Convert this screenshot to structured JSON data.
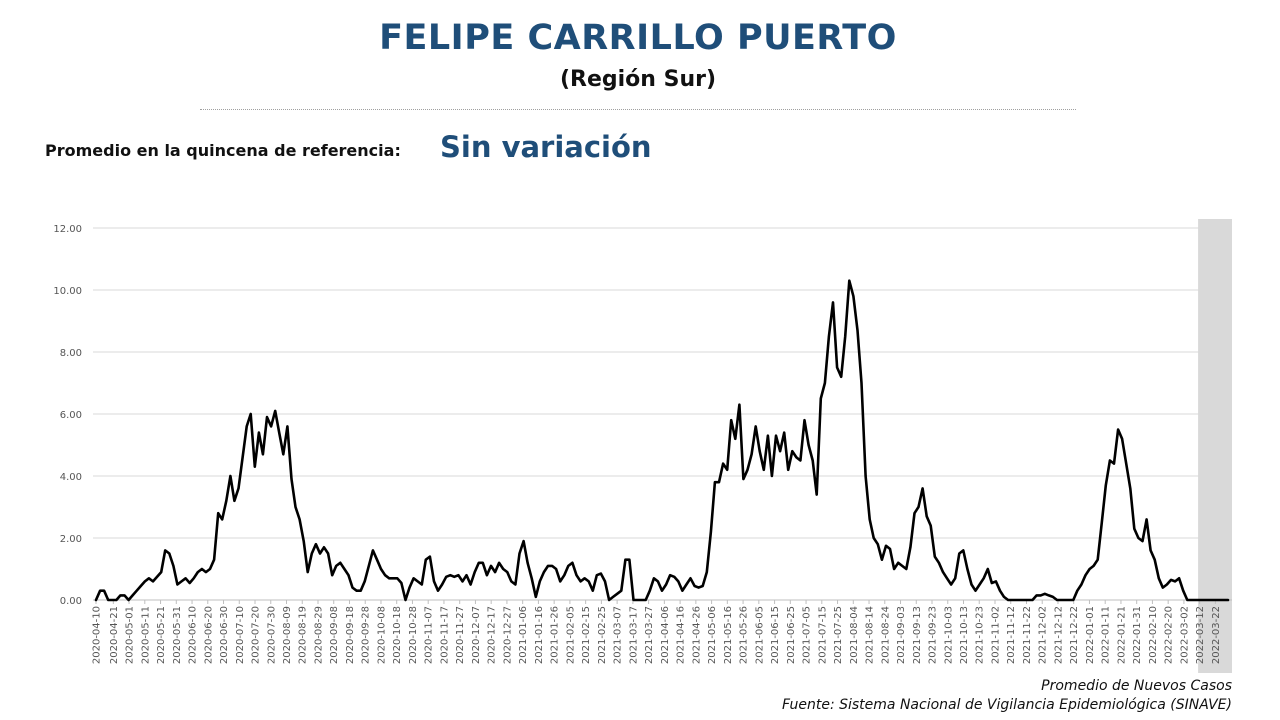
{
  "header": {
    "title": "FELIPE CARRILLO PUERTO",
    "subtitle": "(Región Sur)"
  },
  "reference": {
    "label": "Promedio en la quincena de referencia:",
    "value": "Sin variación"
  },
  "footer": {
    "line1": "Promedio de Nuevos Casos",
    "line2": "Fuente: Sistema Nacional de Vigilancia Epidemiológica (SINAVE)"
  },
  "colors": {
    "title": "#1f4e79",
    "line": "#000000",
    "grid": "#d9d9d9",
    "shade": "#d9d9d9"
  },
  "chart_data": {
    "type": "line",
    "title": "",
    "xlabel": "",
    "ylabel": "",
    "ylim": [
      0,
      12
    ],
    "yticks": [
      "0.00",
      "2.00",
      "4.00",
      "6.00",
      "8.00",
      "10.00",
      "12.00"
    ],
    "xticks": [
      "2020-04-10",
      "2020-04-21",
      "2020-05-01",
      "2020-05-11",
      "2020-05-21",
      "2020-05-31",
      "2020-06-10",
      "2020-06-20",
      "2020-06-30",
      "2020-07-10",
      "2020-07-20",
      "2020-07-30",
      "2020-08-09",
      "2020-08-19",
      "2020-08-29",
      "2020-09-08",
      "2020-09-18",
      "2020-09-28",
      "2020-10-08",
      "2020-10-18",
      "2020-10-28",
      "2020-11-07",
      "2020-11-17",
      "2020-11-27",
      "2020-12-07",
      "2020-12-17",
      "2020-12-27",
      "2021-01-06",
      "2021-01-16",
      "2021-01-26",
      "2021-02-05",
      "2021-02-15",
      "2021-02-25",
      "2021-03-07",
      "2021-03-17",
      "2021-03-27",
      "2021-04-06",
      "2021-04-16",
      "2021-04-26",
      "2021-05-06",
      "2021-05-16",
      "2021-05-26",
      "2021-06-05",
      "2021-06-15",
      "2021-06-25",
      "2021-07-05",
      "2021-07-15",
      "2021-07-25",
      "2021-08-04",
      "2021-08-14",
      "2021-08-24",
      "2021-09-03",
      "2021-09-13",
      "2021-09-23",
      "2021-10-03",
      "2021-10-13",
      "2021-10-23",
      "2021-11-02",
      "2021-11-12",
      "2021-11-22",
      "2021-12-02",
      "2021-12-12",
      "2021-12-22",
      "2022-01-01",
      "2022-01-11",
      "2022-01-21",
      "2022-01-31",
      "2022-02-10",
      "2022-02-20",
      "2022-03-02",
      "2022-03-12",
      "2022-03-22"
    ],
    "shaded_region": [
      "2022-03-11",
      "2022-03-30"
    ],
    "series": [
      {
        "values": [
          0.0,
          0.3,
          0.3,
          0.0,
          0.0,
          0.0,
          0.15,
          0.15,
          0.0,
          0.15,
          0.3,
          0.45,
          0.6,
          0.7,
          0.6,
          0.75,
          0.9,
          1.6,
          1.5,
          1.1,
          0.5,
          0.6,
          0.7,
          0.55,
          0.7,
          0.9,
          1.0,
          0.9,
          1.0,
          1.3,
          2.8,
          2.6,
          3.2,
          4.0,
          3.2,
          3.6,
          4.6,
          5.6,
          6.0,
          4.3,
          5.4,
          4.7,
          5.9,
          5.6,
          6.1,
          5.4,
          4.7,
          5.6,
          3.9,
          3.0,
          2.6,
          1.9,
          0.9,
          1.5,
          1.8,
          1.5,
          1.7,
          1.5,
          0.8,
          1.1,
          1.2,
          1.0,
          0.8,
          0.4,
          0.3,
          0.3,
          0.6,
          1.1,
          1.6,
          1.3,
          1.0,
          0.8,
          0.7,
          0.7,
          0.7,
          0.55,
          0.0,
          0.4,
          0.7,
          0.6,
          0.5,
          1.3,
          1.4,
          0.6,
          0.3,
          0.5,
          0.75,
          0.8,
          0.75,
          0.8,
          0.6,
          0.8,
          0.5,
          0.9,
          1.2,
          1.2,
          0.8,
          1.1,
          0.9,
          1.2,
          1.0,
          0.9,
          0.6,
          0.5,
          1.5,
          1.9,
          1.2,
          0.7,
          0.1,
          0.6,
          0.9,
          1.1,
          1.1,
          1.0,
          0.6,
          0.8,
          1.1,
          1.2,
          0.8,
          0.6,
          0.7,
          0.6,
          0.3,
          0.8,
          0.85,
          0.6,
          0.0,
          0.1,
          0.2,
          0.3,
          1.3,
          1.3,
          0.0,
          0.0,
          0.0,
          0.0,
          0.3,
          0.7,
          0.6,
          0.3,
          0.5,
          0.8,
          0.75,
          0.6,
          0.3,
          0.5,
          0.7,
          0.45,
          0.4,
          0.45,
          0.9,
          2.2,
          3.8,
          3.8,
          4.4,
          4.2,
          5.8,
          5.2,
          6.3,
          3.9,
          4.2,
          4.7,
          5.6,
          4.8,
          4.2,
          5.3,
          4.0,
          5.3,
          4.8,
          5.4,
          4.2,
          4.8,
          4.6,
          4.5,
          5.8,
          5.0,
          4.5,
          3.4,
          6.5,
          7.0,
          8.5,
          9.6,
          7.5,
          7.2,
          8.5,
          10.3,
          9.8,
          8.7,
          7.0,
          4.0,
          2.6,
          2.0,
          1.8,
          1.3,
          1.75,
          1.65,
          1.0,
          1.2,
          1.1,
          1.0,
          1.7,
          2.8,
          3.0,
          3.6,
          2.7,
          2.4,
          1.4,
          1.2,
          0.9,
          0.7,
          0.5,
          0.7,
          1.5,
          1.6,
          1.0,
          0.5,
          0.3,
          0.5,
          0.7,
          1.0,
          0.55,
          0.6,
          0.3,
          0.1,
          0.0,
          0.0,
          0.0,
          0.0,
          0.0,
          0.0,
          0.0,
          0.15,
          0.15,
          0.2,
          0.15,
          0.1,
          0.0,
          0.0,
          0.0,
          0.0,
          0.0,
          0.3,
          0.5,
          0.8,
          1.0,
          1.1,
          1.3,
          2.5,
          3.7,
          4.5,
          4.4,
          5.5,
          5.2,
          4.4,
          3.6,
          2.3,
          2.0,
          1.9,
          2.6,
          1.6,
          1.3,
          0.7,
          0.4,
          0.5,
          0.65,
          0.6,
          0.7,
          0.3,
          0.0,
          0.0,
          0.0,
          0.0,
          0.0,
          0.0,
          0.0,
          0.0,
          0.0,
          0.0,
          0.0
        ]
      }
    ],
    "grid": true
  }
}
